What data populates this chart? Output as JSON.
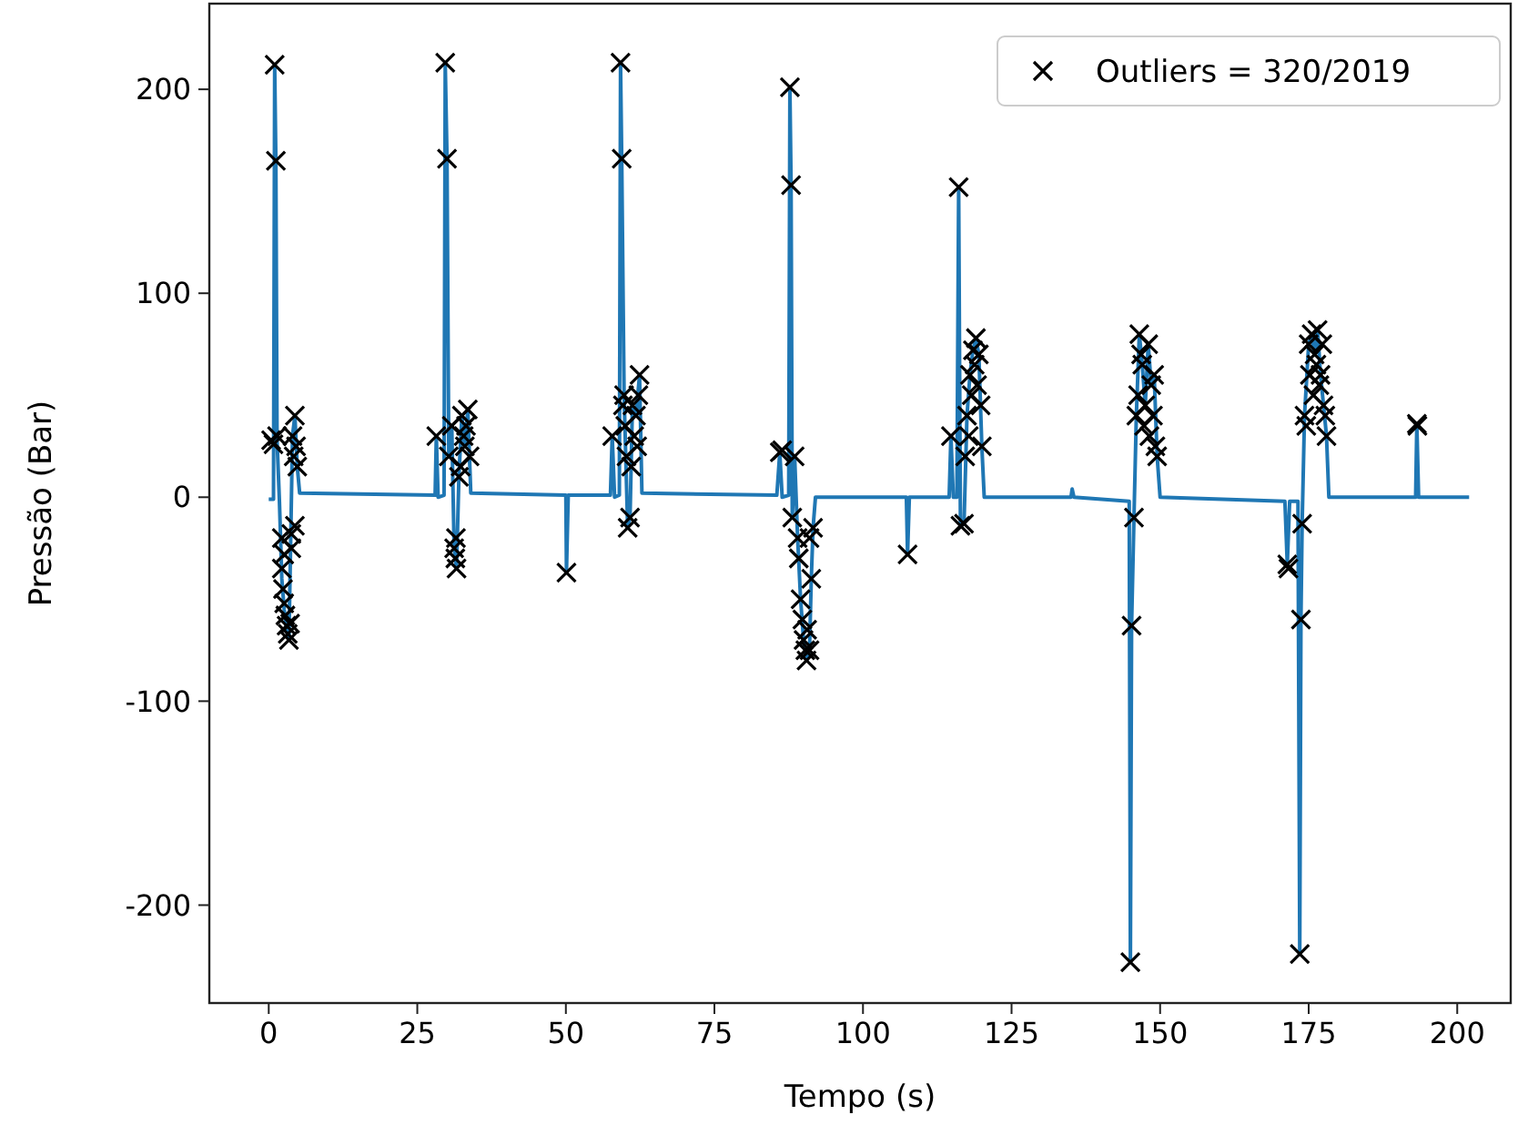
{
  "chart_data": {
    "type": "line",
    "xlabel": "Tempo (s)",
    "ylabel": "Pressão (Bar)",
    "xlim": [
      -10,
      209
    ],
    "ylim": [
      -248,
      242
    ],
    "xticks": [
      0,
      25,
      50,
      75,
      100,
      125,
      150,
      175,
      200
    ],
    "yticks": [
      -200,
      -100,
      0,
      100,
      200
    ],
    "grid": false,
    "legend": "top right",
    "series": [
      {
        "color": "#1f77b4",
        "marker": "none",
        "x": [
          0,
          0.8,
          1,
          1.2,
          1.4,
          1.8,
          2.2,
          2.6,
          3,
          3.4,
          3.7,
          4,
          4.4,
          4.8,
          5.2,
          28,
          28.2,
          28.5,
          29.5,
          29.7,
          30,
          30.3,
          30.8,
          31.2,
          31.6,
          32,
          32.5,
          33,
          33.5,
          34,
          50,
          50.1,
          50.4,
          57.5,
          57.8,
          58.2,
          59,
          59.2,
          59.4,
          59.8,
          60.4,
          60.8,
          61.2,
          61.8,
          62.4,
          62.8,
          85.5,
          86,
          86.4,
          87.5,
          87.7,
          87.9,
          88.1,
          88.5,
          89,
          89.5,
          90,
          90.5,
          91,
          91.3,
          91.6,
          92,
          107.3,
          107.5,
          107.8,
          114.5,
          114.8,
          115.2,
          115.8,
          116.1,
          116.4,
          117,
          117.5,
          118,
          118.5,
          119,
          119.5,
          120,
          120.4,
          135,
          135.2,
          135.5,
          144.8,
          145,
          145.2,
          145.6,
          146,
          146.5,
          147,
          147.5,
          148,
          148.5,
          149,
          149.5,
          150,
          171,
          171.4,
          171.8,
          173.2,
          173.5,
          173.7,
          173.9,
          174.3,
          175,
          175.5,
          176,
          176.5,
          177,
          177.5,
          178,
          178.4,
          193,
          193.2,
          193.5,
          202
        ],
        "values": [
          -1,
          -1,
          212,
          165,
          28,
          -2,
          -40,
          -55,
          -65,
          -70,
          -20,
          30,
          40,
          15,
          2,
          1,
          30,
          0,
          1,
          213,
          166,
          20,
          35,
          -25,
          -35,
          10,
          40,
          25,
          43,
          2,
          1,
          -37,
          1,
          1,
          30,
          0,
          1,
          213,
          166,
          50,
          -15,
          -10,
          45,
          40,
          60,
          2,
          1,
          22,
          0,
          1,
          201,
          153,
          -10,
          20,
          -20,
          -50,
          -70,
          -80,
          -75,
          -40,
          -15,
          0,
          0,
          -28,
          0,
          0,
          30,
          0,
          0,
          152,
          -14,
          -13,
          40,
          60,
          72,
          78,
          70,
          25,
          0,
          0,
          4,
          0,
          -2,
          -228,
          -63,
          -10,
          40,
          80,
          65,
          45,
          75,
          55,
          60,
          20,
          0,
          -2,
          -33,
          -2,
          -2,
          -224,
          -60,
          -13,
          40,
          75,
          80,
          70,
          82,
          60,
          45,
          30,
          0,
          0,
          36,
          0,
          0
        ]
      },
      {
        "type": "scatter",
        "name": "Outliers = 320/2019",
        "color": "#000000",
        "marker": "cross",
        "x": [
          1,
          1.2,
          0.4,
          0.8,
          1.4,
          2.2,
          2.4,
          2.6,
          2.8,
          3,
          3.2,
          3.4,
          2.2,
          2.6,
          3.6,
          3.8,
          4,
          4.2,
          4.4,
          4.6,
          4.8,
          3.8,
          4.4,
          28.2,
          29.7,
          30,
          30.3,
          30.8,
          31.2,
          31.4,
          31.6,
          31.5,
          32,
          32.3,
          32.5,
          33,
          33.5,
          33.8,
          33.2,
          32.8,
          50.1,
          57.8,
          59.2,
          59.4,
          59.8,
          59.6,
          60,
          60.2,
          60.4,
          60.8,
          61.2,
          61.5,
          61.8,
          62,
          62.4,
          62.2,
          61,
          86,
          86.4,
          87.7,
          87.9,
          88.1,
          88.5,
          89,
          89.2,
          89.5,
          89.8,
          90,
          90.3,
          90.5,
          91,
          91.3,
          91.6,
          91,
          90.6,
          107.5,
          114.8,
          116.1,
          116.4,
          117,
          117.2,
          117.5,
          117.8,
          118,
          118.3,
          118.5,
          118.8,
          119,
          119.2,
          119.5,
          119.8,
          120,
          145,
          145.2,
          145.6,
          146,
          146.3,
          146.5,
          146.8,
          147,
          147.3,
          147.5,
          148,
          148.2,
          148.5,
          148.8,
          149,
          149.2,
          149.5,
          171.4,
          171.6,
          173.5,
          173.7,
          173.9,
          174.3,
          174.6,
          175,
          175.2,
          175.5,
          175.8,
          176,
          176.3,
          176.5,
          176.8,
          177,
          177.3,
          177.5,
          177.8,
          178,
          193.2,
          193.3
        ],
        "values": [
          212,
          165,
          28,
          26,
          30,
          -35,
          -45,
          -52,
          -58,
          -63,
          -67,
          -70,
          -20,
          -28,
          -62,
          -18,
          30,
          20,
          40,
          25,
          15,
          -25,
          -14,
          30,
          213,
          166,
          20,
          35,
          -25,
          -30,
          -35,
          -20,
          10,
          15,
          40,
          25,
          43,
          20,
          35,
          30,
          -37,
          30,
          213,
          166,
          50,
          45,
          35,
          20,
          -15,
          -10,
          45,
          30,
          40,
          25,
          60,
          50,
          15,
          22,
          23,
          201,
          153,
          -10,
          20,
          -20,
          -30,
          -50,
          -60,
          -70,
          -75,
          -80,
          -75,
          -40,
          -15,
          -20,
          -65,
          -28,
          30,
          152,
          -14,
          -13,
          20,
          40,
          30,
          60,
          50,
          72,
          65,
          78,
          55,
          70,
          45,
          25,
          -228,
          -63,
          -10,
          40,
          50,
          80,
          70,
          65,
          35,
          45,
          75,
          30,
          55,
          40,
          60,
          25,
          20,
          -33,
          -35,
          -224,
          -60,
          -13,
          40,
          35,
          75,
          60,
          80,
          50,
          70,
          65,
          82,
          55,
          60,
          75,
          45,
          40,
          30,
          36,
          35
        ]
      }
    ]
  }
}
